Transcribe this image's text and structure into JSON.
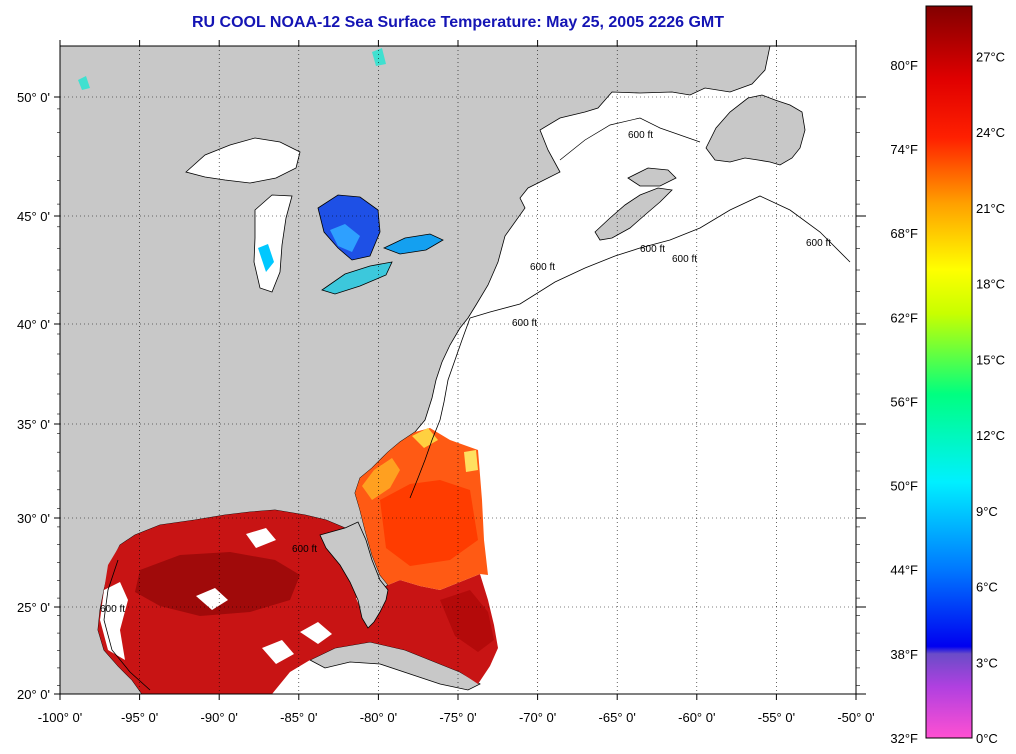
{
  "title": "RU COOL  NOAA-12  Sea Surface Temperature:  May 25, 2005 2226 GMT",
  "map": {
    "lon_range": [
      -100,
      -50
    ],
    "lat_range": [
      20,
      52.5
    ],
    "lon_ticks": [
      {
        "value": -100,
        "label": "-100° 0'"
      },
      {
        "value": -95,
        "label": "-95° 0'"
      },
      {
        "value": -90,
        "label": "-90° 0'"
      },
      {
        "value": -85,
        "label": "-85° 0'"
      },
      {
        "value": -80,
        "label": "-80° 0'"
      },
      {
        "value": -75,
        "label": "-75° 0'"
      },
      {
        "value": -70,
        "label": "-70° 0'"
      },
      {
        "value": -65,
        "label": "-65° 0'"
      },
      {
        "value": -60,
        "label": "-60° 0'"
      },
      {
        "value": -55,
        "label": "-55° 0'"
      },
      {
        "value": -50,
        "label": "-50° 0'"
      }
    ],
    "lat_ticks": [
      {
        "value": 20,
        "label": "20° 0'"
      },
      {
        "value": 25,
        "label": "25° 0'"
      },
      {
        "value": 30,
        "label": "30° 0'"
      },
      {
        "value": 35,
        "label": "35° 0'"
      },
      {
        "value": 40,
        "label": "40° 0'"
      },
      {
        "value": 45,
        "label": "45° 0'"
      },
      {
        "value": 50,
        "label": "50° 0'"
      }
    ],
    "depth_contour_labels": [
      "600 ft",
      "600 ft",
      "600 ft",
      "600 ft",
      "600 ft",
      "600 ft",
      "600 ft",
      "600 ft"
    ],
    "colors": {
      "land": "#c8c8c8",
      "title": "#1414b4",
      "ocean_no_data": "#ffffff"
    }
  },
  "colorbar": {
    "range_c": [
      0,
      29
    ],
    "fahrenheit_labels": [
      "80°F",
      "74°F",
      "68°F",
      "62°F",
      "56°F",
      "50°F",
      "44°F",
      "38°F",
      "32°F"
    ],
    "celsius_labels": [
      "27°C",
      "24°C",
      "21°C",
      "18°C",
      "15°C",
      "12°C",
      "9°C",
      "6°C",
      "3°C",
      "0°C"
    ]
  }
}
